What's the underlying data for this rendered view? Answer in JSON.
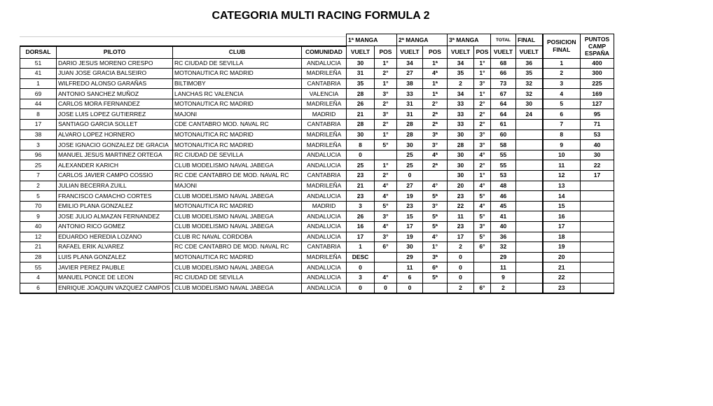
{
  "title": "CATEGORIA MULTI RACING FORMULA 2",
  "headers": {
    "manga1": "1ª MANGA",
    "manga2": "2ª MANGA",
    "manga3": "3ª  MANGA",
    "total": "TOTAL",
    "final": "FINAL",
    "posicion_final": "POSICION FINAL",
    "puntos": "PUNTOS CAMP ESPAÑA",
    "dorsal": "DORSAL",
    "piloto": "PILOTO",
    "club": "CLUB",
    "comunidad": "COMUNIDAD",
    "vuelt": "VUELT",
    "pos": "POS"
  },
  "rows": [
    [
      "51",
      "DARIO JESUS MORENO CRESPO",
      "RC CIUDAD DE SEVILLA",
      "ANDALUCIA",
      "30",
      "1°",
      "34",
      "1ª",
      "34",
      "1°",
      "68",
      "36",
      "1",
      "400"
    ],
    [
      "41",
      "JUAN JOSE GRACIA BALSEIRO",
      "MOTONAUTICA RC MADRID",
      "MADRILEÑA",
      "31",
      "2°",
      "27",
      "4ª",
      "35",
      "1°",
      "66",
      "35",
      "2",
      "300"
    ],
    [
      "1",
      "WILFREDO ALONSO GARAÑAS",
      "BILTIMOBY",
      "CANTABRIA",
      "35",
      "1°",
      "38",
      "1ª",
      "2",
      "3°",
      "73",
      "32",
      "3",
      "225"
    ],
    [
      "69",
      "ANTONIO SANCHEZ MUÑOZ",
      "LANCHAS RC VALENCIA",
      "VALENCIA",
      "28",
      "3°",
      "33",
      "1ª",
      "34",
      "1°",
      "67",
      "32",
      "4",
      "169"
    ],
    [
      "44",
      "CARLOS MORA FERNANDEZ",
      "MOTONAUTICA RC MADRID",
      "MADRILEÑA",
      "26",
      "2°",
      "31",
      "2°",
      "33",
      "2°",
      "64",
      "30",
      "5",
      "127"
    ],
    [
      "8",
      "JOSE LUIS LOPEZ GUTIERREZ",
      "MAJONI",
      "MADRID",
      "21",
      "3°",
      "31",
      "2ª",
      "33",
      "2°",
      "64",
      "24",
      "6",
      "95"
    ],
    [
      "17",
      "SANTIAGO GARCIA SOLLET",
      "CDE CANTABRO MOD. NAVAL RC",
      "CANTABRIA",
      "28",
      "2°",
      "28",
      "2ª",
      "33",
      "2°",
      "61",
      "",
      "7",
      "71"
    ],
    [
      "38",
      "ALVARO LOPEZ HORNERO",
      "MOTONAUTICA RC MADRID",
      "MADRILEÑA",
      "30",
      "1°",
      "28",
      "3ª",
      "30",
      "3°",
      "60",
      "",
      "8",
      "53"
    ],
    [
      "3",
      "JOSE IGNACIO GONZALEZ DE GRACIA",
      "MOTONAUTICA RC MADRID",
      "MADRILEÑA",
      "8",
      "5°",
      "30",
      "3°",
      "28",
      "3°",
      "58",
      "",
      "9",
      "40"
    ],
    [
      "96",
      "MANUEL JESUS MARTINEZ ORTEGA",
      "RC CIUDAD DE SEVILLA",
      "ANDALUCIA",
      "0",
      "",
      "25",
      "4ª",
      "30",
      "4°",
      "55",
      "",
      "10",
      "30"
    ],
    [
      "25",
      "ALEXANDER KARICH",
      "CLUB MODELISMO NAVAL JABEGA",
      "ANDALUCIA",
      "25",
      "1°",
      "25",
      "2ª",
      "30",
      "2°",
      "55",
      "",
      "11",
      "22"
    ],
    [
      "7",
      "CARLOS JAVIER CAMPO COSSIO",
      "RC CDE CANTABRO DE MOD. NAVAL RC",
      "CANTABRIA",
      "23",
      "2°",
      "0",
      "",
      "30",
      "1°",
      "53",
      "",
      "12",
      "17"
    ],
    [
      "2",
      "JULIAN BECERRA ZUILL",
      "MAJONI",
      "MADRILEÑA",
      "21",
      "4°",
      "27",
      "4°",
      "20",
      "4°",
      "48",
      "",
      "13",
      ""
    ],
    [
      "5",
      "FRANCISCO CAMACHO CORTES",
      "CLUB MODELISMO NAVAL JABEGA",
      "ANDALUCIA",
      "23",
      "4°",
      "19",
      "5ª",
      "23",
      "5°",
      "46",
      "",
      "14",
      ""
    ],
    [
      "70",
      "EMILIO PLANA GONZALEZ",
      "MOTONAUTICA RC MADRID",
      "MADRID",
      "3",
      "5°",
      "23",
      "3°",
      "22",
      "4°",
      "45",
      "",
      "15",
      ""
    ],
    [
      "9",
      "JOSE JULIO ALMAZAN FERNANDEZ",
      "CLUB MODELISMO NAVAL JABEGA",
      "ANDALUCIA",
      "26",
      "3°",
      "15",
      "5ª",
      "11",
      "5°",
      "41",
      "",
      "16",
      ""
    ],
    [
      "40",
      "ANTONIO RICO GOMEZ",
      "CLUB MODELISMO NAVAL JABEGA",
      "ANDALUCIA",
      "16",
      "4°",
      "17",
      "5ª",
      "23",
      "3°",
      "40",
      "",
      "17",
      ""
    ],
    [
      "12",
      "EDUARDO HEREDIA LOZANO",
      "CLUB RC NAVAL CORDOBA",
      "ANDALUCIA",
      "17",
      "3°",
      "19",
      "4°",
      "17",
      "5°",
      "36",
      "",
      "18",
      ""
    ],
    [
      "21",
      "RAFAEL ERIK ALVAREZ",
      "RC CDE CANTABRO DE MOD. NAVAL RC",
      "CANTABRIA",
      "1",
      "6°",
      "30",
      "1°",
      "2",
      "6°",
      "32",
      "",
      "19",
      ""
    ],
    [
      "28",
      "LUIS PLANA GONZALEZ",
      "MOTONAUTICA RC MADRID",
      "MADRILEÑA",
      "DESC",
      "",
      "29",
      "3ª",
      "0",
      "",
      "29",
      "",
      "20",
      ""
    ],
    [
      "55",
      "JAVIER PEREZ PAUBLE",
      "CLUB MODELISMO NAVAL JABEGA",
      "ANDALUCIA",
      "0",
      "",
      "11",
      "6ª",
      "0",
      "",
      "11",
      "",
      "21",
      ""
    ],
    [
      "4",
      "MANUEL PONCE DE LEON",
      "RC CIUDAD DE SEVILLA",
      "ANDALUCIA",
      "3",
      "4°",
      "6",
      "5ª",
      "0",
      "",
      "9",
      "",
      "22",
      ""
    ],
    [
      "6",
      "ENRIQUE JOAQUIN VAZQUEZ CAMPOS",
      "CLUB MODELISMO NAVAL JABEGA",
      "ANDALUCIA",
      "0",
      "0",
      "0",
      "",
      "2",
      "6°",
      "2",
      "",
      "23",
      ""
    ]
  ]
}
